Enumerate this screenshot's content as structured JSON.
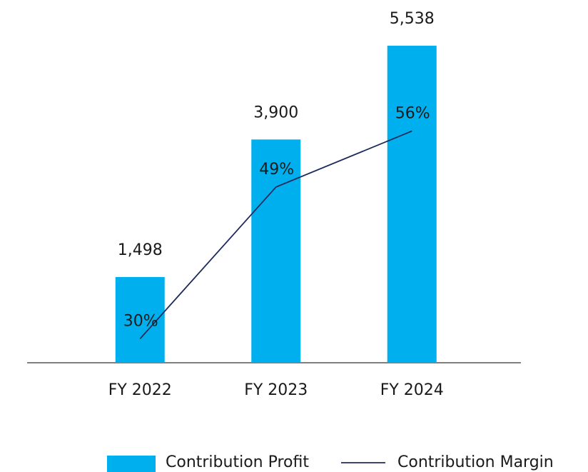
{
  "chart_data": {
    "type": "bar",
    "categories": [
      "FY 2022",
      "FY 2023",
      "FY 2024"
    ],
    "series": [
      {
        "name": "Contribution Profit",
        "type": "bar",
        "color": "#00b0ee",
        "values": [
          1498,
          3900,
          5538
        ],
        "value_labels": [
          "1,498",
          "3,900",
          "5,538"
        ]
      },
      {
        "name": "Contribution Margin",
        "type": "line",
        "axis": "y2",
        "color": "#1f2a5c",
        "values": [
          30,
          49,
          56
        ],
        "value_labels": [
          "30%",
          "49%",
          "56%"
        ]
      }
    ],
    "ylim": [
      0,
      6000
    ],
    "y2lim": [
      27,
      70
    ],
    "grid": false,
    "legend": "bottom"
  }
}
